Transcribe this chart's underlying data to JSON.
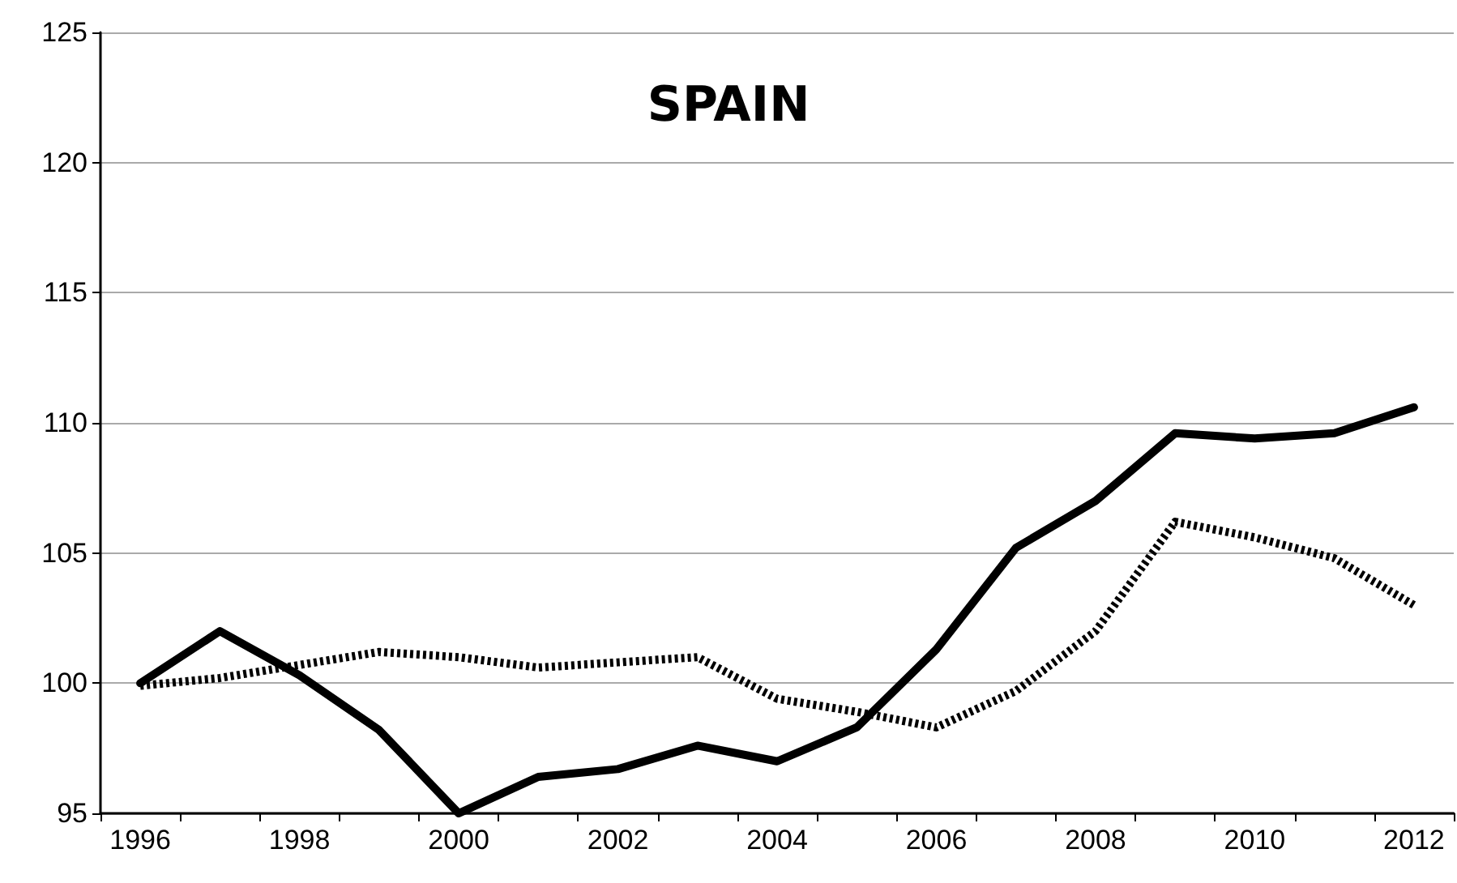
{
  "chart_data": {
    "type": "line",
    "title": "SPAIN",
    "categories": [
      "1996",
      null,
      "1998",
      null,
      "2000",
      null,
      "2002",
      null,
      "2004",
      null,
      "2006",
      null,
      "2008",
      null,
      "2010",
      null,
      "2012"
    ],
    "series": [
      {
        "color": "#000000",
        "line_style": "solid",
        "values": [
          100,
          102,
          100.3,
          98.2,
          95.0,
          96.4,
          96.7,
          97.6,
          97.0,
          98.3,
          101.3,
          105.2,
          107.0,
          109.6,
          109.4,
          109.6,
          110.6
        ]
      },
      {
        "color": "#000000",
        "line_style": "dotted",
        "values": [
          99.9,
          100.2,
          100.7,
          101.2,
          101.0,
          100.6,
          100.8,
          101.0,
          99.4,
          98.9,
          98.3,
          99.7,
          102.0,
          106.2,
          105.6,
          104.8,
          103.0
        ]
      }
    ],
    "ylim": [
      95,
      125
    ],
    "yticks": [
      95,
      100,
      105,
      110,
      115,
      120,
      125
    ],
    "grid": "y",
    "marker": "none"
  }
}
